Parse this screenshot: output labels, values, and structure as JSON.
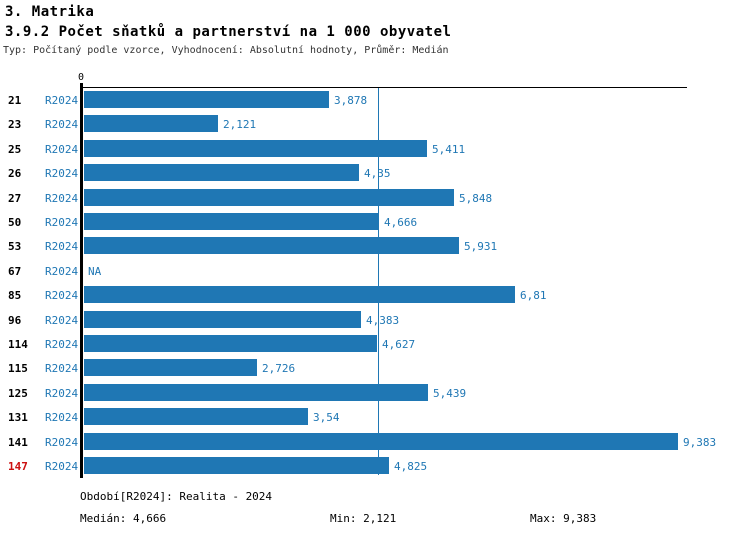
{
  "header": {
    "title": "3. Matrika",
    "subtitle": "3.9.2 Počet sňatků a partnerství na 1 000 obyvatel",
    "meta": "Typ: Počítaný podle vzorce, Vyhodnocení: Absolutní hodnoty, Průměr: Medián"
  },
  "colors": {
    "bar": "#1f77b4",
    "blue_text": "#1f77b4",
    "highlight_red": "#cc1111",
    "axis": "#000000",
    "meta_text": "#333333"
  },
  "chart_data": {
    "type": "bar",
    "orientation": "horizontal",
    "title": "3.9.2 Počet sňatků a partnerství na 1 000 obyvatel",
    "xlabel": "",
    "ylabel": "",
    "xlim": [
      0,
      9.5
    ],
    "grid": false,
    "zero_label": "0",
    "median_value": 4.666,
    "categories": [
      "21",
      "23",
      "25",
      "26",
      "27",
      "50",
      "53",
      "67",
      "85",
      "96",
      "114",
      "115",
      "125",
      "131",
      "141",
      "147"
    ],
    "series": [
      {
        "name": "R2024",
        "values": [
          3.878,
          2.121,
          5.411,
          4.35,
          5.848,
          4.666,
          5.931,
          null,
          6.81,
          4.383,
          4.627,
          2.726,
          5.439,
          3.54,
          9.383,
          4.825
        ],
        "value_labels": [
          "3,878",
          "2,121",
          "5,411",
          "4,35",
          "5,848",
          "4,666",
          "5,931",
          "NA",
          "6,81",
          "4,383",
          "4,627",
          "2,726",
          "5,439",
          "3,54",
          "9,383",
          "4,825"
        ]
      }
    ],
    "rows": [
      {
        "category": "21",
        "period": "R2024",
        "value": 3.878,
        "label": "3,878",
        "highlight": false
      },
      {
        "category": "23",
        "period": "R2024",
        "value": 2.121,
        "label": "2,121",
        "highlight": false
      },
      {
        "category": "25",
        "period": "R2024",
        "value": 5.411,
        "label": "5,411",
        "highlight": false
      },
      {
        "category": "26",
        "period": "R2024",
        "value": 4.35,
        "label": "4,35",
        "highlight": false
      },
      {
        "category": "27",
        "period": "R2024",
        "value": 5.848,
        "label": "5,848",
        "highlight": false
      },
      {
        "category": "50",
        "period": "R2024",
        "value": 4.666,
        "label": "4,666",
        "highlight": false
      },
      {
        "category": "53",
        "period": "R2024",
        "value": 5.931,
        "label": "5,931",
        "highlight": false
      },
      {
        "category": "67",
        "period": "R2024",
        "value": null,
        "label": "NA",
        "highlight": false
      },
      {
        "category": "85",
        "period": "R2024",
        "value": 6.81,
        "label": "6,81",
        "highlight": false
      },
      {
        "category": "96",
        "period": "R2024",
        "value": 4.383,
        "label": "4,383",
        "highlight": false
      },
      {
        "category": "114",
        "period": "R2024",
        "value": 4.627,
        "label": "4,627",
        "highlight": false
      },
      {
        "category": "115",
        "period": "R2024",
        "value": 2.726,
        "label": "2,726",
        "highlight": false
      },
      {
        "category": "125",
        "period": "R2024",
        "value": 5.439,
        "label": "5,439",
        "highlight": false
      },
      {
        "category": "131",
        "period": "R2024",
        "value": 3.54,
        "label": "3,54",
        "highlight": false
      },
      {
        "category": "141",
        "period": "R2024",
        "value": 9.383,
        "label": "9,383",
        "highlight": false
      },
      {
        "category": "147",
        "period": "R2024",
        "value": 4.825,
        "label": "4,825",
        "highlight": true
      }
    ]
  },
  "footer": {
    "period": "Období[R2024]: Realita - 2024",
    "median": "Medián: 4,666",
    "min": "Min: 2,121",
    "max": "Max: 9,383"
  }
}
